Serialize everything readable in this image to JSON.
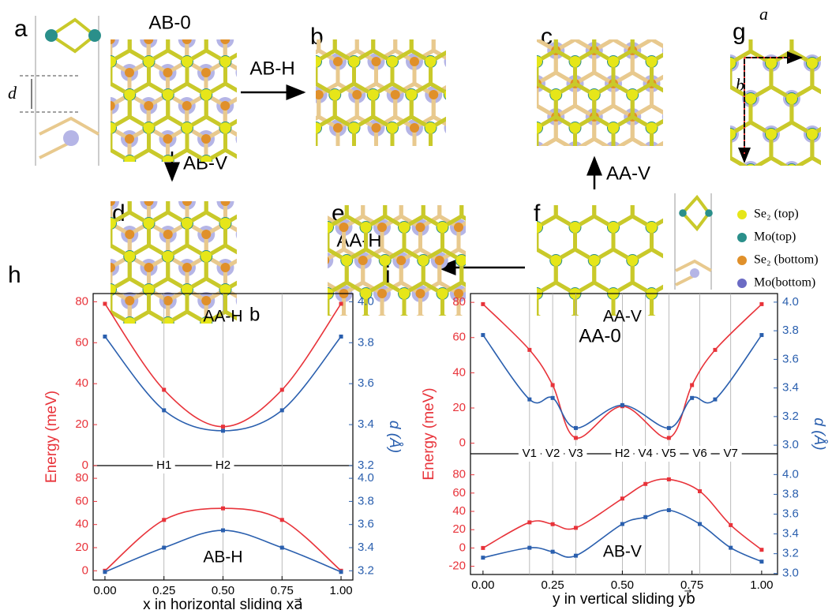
{
  "figure": {
    "panel_labels": {
      "a": "a",
      "b": "b",
      "c": "c",
      "d": "d",
      "e": "e",
      "f": "f",
      "g": "g"
    },
    "structures": {
      "ab0": "AB-0",
      "aa0": "AA-0"
    },
    "arrows": {
      "ab_h": "AB-H",
      "ab_v": "AB-V",
      "aa_v": "AA-V",
      "aa_h": "AA-H"
    },
    "b_label": "b",
    "d_label": "d",
    "vectors": {
      "a": "a⃗",
      "b": "b⃗"
    },
    "legend": [
      {
        "label": "Se₂ (top)",
        "color": "#e6e619"
      },
      {
        "label": "Mo(top)",
        "color": "#2a8f8a"
      },
      {
        "label": "Se₂ (bottom)",
        "color": "#e0902a"
      },
      {
        "label": "Mo(bottom)",
        "color": "#6b6bc4"
      }
    ]
  },
  "chart_data": [
    {
      "type": "line",
      "label": "h",
      "ylabel": "Energy (meV)",
      "y2label": "d (Å)",
      "xlabel": "x in horizontal sliding xa⃗",
      "xlim": [
        -0.05,
        1.05
      ],
      "xticks": [
        {
          "value": 0,
          "label": "0.00"
        },
        {
          "value": 0.25,
          "label": "0.25"
        },
        {
          "value": 0.5,
          "label": "0.50"
        },
        {
          "value": 0.75,
          "label": "0.75"
        },
        {
          "value": 1,
          "label": "1.00"
        }
      ],
      "vlines": [
        {
          "x": 0.25,
          "label": "H1"
        },
        {
          "x": 0.5,
          "label": "H2"
        },
        {
          "x": 0.75,
          "label": null
        }
      ],
      "panels": [
        {
          "title": "AA-H",
          "ylim": [
            0,
            84
          ],
          "yticks": [
            0,
            20,
            40,
            60,
            80
          ],
          "y2lim": [
            3.2,
            4.04
          ],
          "y2ticks": [
            3.2,
            3.4,
            3.6,
            3.8,
            {
              "value": 4,
              "label": "4.0"
            }
          ],
          "x": [
            0,
            0.25,
            0.5,
            0.75,
            1
          ],
          "series": [
            {
              "name": "Energy",
              "color": "#e8333a",
              "values": [
                79,
                37,
                19,
                37,
                79
              ]
            },
            {
              "name": "d",
              "color": "#2a5fae",
              "axis": "y2",
              "values": [
                3.83,
                3.47,
                3.37,
                3.47,
                3.83
              ]
            }
          ]
        },
        {
          "title": "AB-H",
          "ylim": [
            -8,
            91
          ],
          "yticks": [
            0,
            20,
            40,
            60,
            80
          ],
          "y2lim": [
            3.12,
            4.11
          ],
          "y2ticks": [
            3.2,
            3.4,
            3.6,
            3.8,
            {
              "value": 4,
              "label": "4.0"
            }
          ],
          "x": [
            0,
            0.25,
            0.5,
            0.75,
            1
          ],
          "series": [
            {
              "name": "Energy",
              "color": "#e8333a",
              "values": [
                0,
                44,
                54,
                44,
                0
              ]
            },
            {
              "name": "d",
              "color": "#2a5fae",
              "axis": "y2",
              "values": [
                3.19,
                3.4,
                3.55,
                3.4,
                3.19
              ]
            }
          ]
        }
      ]
    },
    {
      "type": "line",
      "label": "i",
      "ylabel": "Energy (meV)",
      "y2label": "d (Å)",
      "xlabel": "y in vertical sliding yb⃗",
      "xlim": [
        -0.045,
        1.057
      ],
      "xticks": [
        {
          "value": 0,
          "label": "0.00"
        },
        {
          "value": 0.25,
          "label": "0.25"
        },
        {
          "value": 0.5,
          "label": "0.50"
        },
        {
          "value": 0.75,
          "label": "0.75"
        },
        {
          "value": 1,
          "label": "1.00"
        }
      ],
      "vlines": [
        {
          "x": 0.167,
          "label": "V1"
        },
        {
          "x": 0.25,
          "label": "V2"
        },
        {
          "x": 0.333,
          "label": "V3"
        },
        {
          "x": 0.5,
          "label": "H2"
        },
        {
          "x": 0.583,
          "label": "V4"
        },
        {
          "x": 0.667,
          "label": "V5"
        },
        {
          "x": 0.778,
          "label": "V6"
        },
        {
          "x": 0.889,
          "label": "V7"
        }
      ],
      "panels": [
        {
          "title": "AA-V",
          "ylim": [
            -6,
            85
          ],
          "yticks": [
            0,
            20,
            40,
            60,
            80
          ],
          "y2lim": [
            2.94,
            4.06
          ],
          "y2ticks": [
            {
              "value": 3,
              "label": "3.0"
            },
            3.2,
            3.4,
            3.6,
            3.8,
            {
              "value": 4,
              "label": "4.0"
            }
          ],
          "x": [
            0,
            0.167,
            0.25,
            0.333,
            0.5,
            0.667,
            0.75,
            0.833,
            1
          ],
          "series": [
            {
              "name": "Energy",
              "color": "#e8333a",
              "values": [
                79,
                53,
                33,
                3,
                21,
                3,
                33,
                53,
                79
              ]
            },
            {
              "name": "d",
              "color": "#2a5fae",
              "axis": "y2",
              "values": [
                3.77,
                3.32,
                3.33,
                3.12,
                3.28,
                3.12,
                3.33,
                3.32,
                3.77
              ]
            }
          ]
        },
        {
          "title": "AB-V",
          "ylim": [
            -29,
            103
          ],
          "yticks": [
            -20,
            0,
            20,
            40,
            60,
            80
          ],
          "y2lim": [
            2.99,
            4.21
          ],
          "y2ticks": [
            {
              "value": 3,
              "label": "3.0"
            },
            3.2,
            3.4,
            3.6,
            3.8,
            {
              "value": 4,
              "label": "4.0"
            }
          ],
          "x": [
            0,
            0.167,
            0.25,
            0.333,
            0.5,
            0.583,
            0.667,
            0.778,
            0.889,
            1
          ],
          "series": [
            {
              "name": "Energy",
              "color": "#e8333a",
              "values": [
                0,
                28,
                26,
                22,
                54,
                70,
                75,
                62,
                25,
                -2
              ]
            },
            {
              "name": "d",
              "color": "#2a5fae",
              "axis": "y2",
              "values": [
                3.16,
                3.26,
                3.22,
                3.18,
                3.5,
                3.57,
                3.64,
                3.5,
                3.26,
                3.12
              ]
            }
          ]
        }
      ]
    }
  ]
}
